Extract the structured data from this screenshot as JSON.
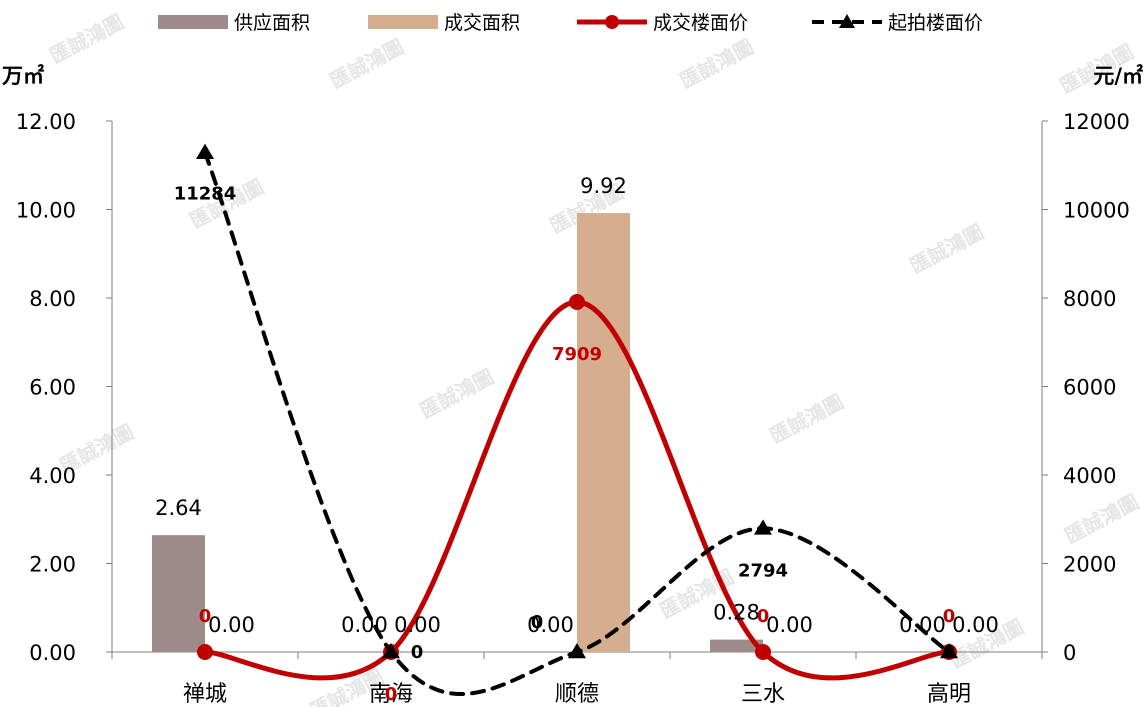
{
  "chart_data": {
    "type": "bar+line",
    "categories": [
      "禅城",
      "南海",
      "顺德",
      "三水",
      "高明"
    ],
    "y_left": {
      "unit": "万㎡",
      "ylim": [
        0,
        12
      ],
      "ticks": [
        "0.00",
        "2.00",
        "4.00",
        "6.00",
        "8.00",
        "10.00",
        "12.00"
      ]
    },
    "y_right": {
      "unit": "元/㎡",
      "ylim": [
        0,
        12000
      ],
      "ticks": [
        "0",
        "2000",
        "4000",
        "6000",
        "8000",
        "10000",
        "12000"
      ]
    },
    "series": [
      {
        "name": "供应面积",
        "kind": "bar",
        "axis": "left",
        "color": "#9d8b8b",
        "values": [
          2.64,
          0.0,
          0.0,
          0.28,
          0.0
        ],
        "labels": [
          "2.64",
          "0.00",
          "0.00",
          "0.28",
          "0.00"
        ]
      },
      {
        "name": "成交面积",
        "kind": "bar",
        "axis": "left",
        "color": "#d6ae8f",
        "values": [
          0.0,
          0.0,
          9.92,
          0.0,
          0.0
        ],
        "labels": [
          "0.00",
          "0.00",
          "9.92",
          "0.00",
          "0.00"
        ]
      },
      {
        "name": "成交楼面价",
        "kind": "line",
        "axis": "right",
        "color": "#c00000",
        "style": "solid",
        "marker": "circle",
        "values": [
          0,
          0,
          7909,
          0,
          0
        ],
        "labels": [
          "0",
          "0",
          "7909",
          "0",
          "0"
        ]
      },
      {
        "name": "起拍楼面价",
        "kind": "line",
        "axis": "right",
        "color": "#000000",
        "style": "dashed",
        "marker": "triangle",
        "values": [
          11284,
          0,
          0,
          2794,
          0
        ],
        "labels": [
          "11284",
          "0",
          "0",
          "2794",
          "0"
        ]
      }
    ],
    "legend_position": "top"
  },
  "watermark_text": "匯誠鴻圖"
}
